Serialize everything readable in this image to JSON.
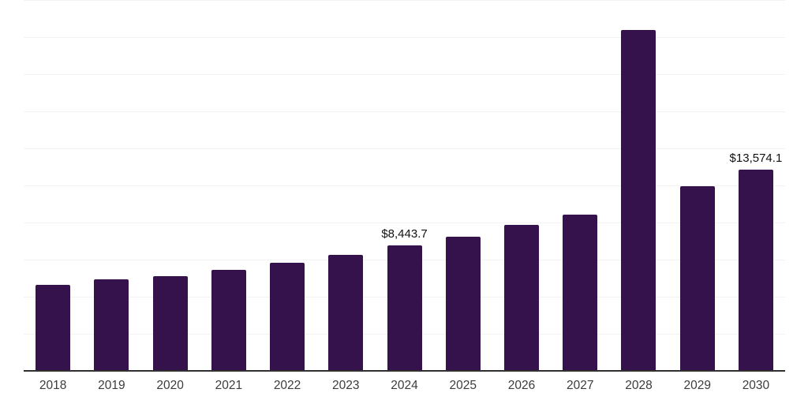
{
  "chart_data": {
    "type": "bar",
    "title": "",
    "xlabel": "",
    "ylabel": "",
    "categories": [
      "2018",
      "2019",
      "2020",
      "2021",
      "2022",
      "2023",
      "2024",
      "2025",
      "2026",
      "2027",
      "2028",
      "2029",
      "2030"
    ],
    "values": [
      5800,
      6170,
      6385,
      6810,
      7290,
      7820,
      8443.7,
      9040,
      9840,
      10530,
      23000,
      12450,
      13574.1
    ],
    "data_labels": {
      "2024": "$8,443.7",
      "2030": "$13,574.1"
    },
    "ylim": [
      0,
      25000
    ],
    "gridline_step": 2500,
    "grid": "horizontal",
    "legend_position": "none",
    "colors": {
      "bar": "#35124B",
      "grid": "#f3f3f3",
      "axis": "#303030",
      "tick_label": "#3c3c3c",
      "data_label": "#111111",
      "background": "#ffffff"
    }
  }
}
